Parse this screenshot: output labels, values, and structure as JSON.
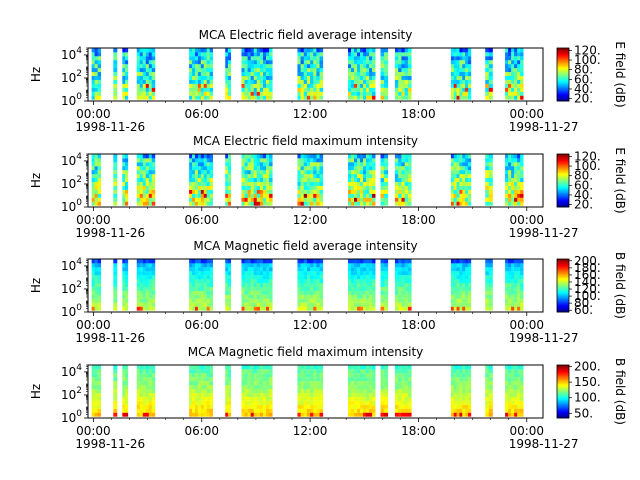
{
  "chart_data": [
    {
      "type": "heatmap",
      "title": "MCA  Electric field average intensity",
      "ylabel": "Hz",
      "y_scale": "log",
      "ylim": [
        1,
        40000
      ],
      "y_ticks": [
        {
          "value": 1,
          "base": "10",
          "exp": "0"
        },
        {
          "value": 100,
          "base": "10",
          "exp": "2"
        },
        {
          "value": 10000,
          "base": "10",
          "exp": "4"
        }
      ],
      "x_ticks": [
        "00:00",
        "06:00",
        "12:00",
        "18:00",
        "00:00"
      ],
      "x_tick_hours": [
        0,
        6,
        12,
        18,
        24
      ],
      "x_dates": [
        "1998-11-26",
        "1998-11-27"
      ],
      "colorbar": {
        "label": "E field (dB)",
        "range": [
          15,
          125
        ],
        "ticks": [
          20,
          40,
          60,
          80,
          100,
          120
        ],
        "tick_labels": [
          "20.",
          "40.",
          "60.",
          "80.",
          "100.",
          "120."
        ]
      },
      "data_intervals_hours": [
        [
          -0.1,
          0.4
        ],
        [
          1.1,
          1.3
        ],
        [
          1.6,
          1.9
        ],
        [
          2.4,
          3.4
        ],
        [
          5.3,
          6.6
        ],
        [
          7.3,
          7.6
        ],
        [
          8.2,
          9.9
        ],
        [
          11.3,
          12.7
        ],
        [
          14.1,
          15.6
        ],
        [
          15.9,
          16.3
        ],
        [
          16.7,
          17.6
        ],
        [
          19.8,
          20.9
        ],
        [
          21.7,
          22.1
        ],
        [
          22.8,
          23.8
        ]
      ],
      "intensity_profile": {
        "low_freq_db": 70,
        "mid_freq_db": 65,
        "high_freq_db": 50,
        "floor_db": 40
      }
    },
    {
      "type": "heatmap",
      "title": "MCA  Electric field maximum intensity",
      "ylabel": "Hz",
      "y_scale": "log",
      "ylim": [
        1,
        40000
      ],
      "y_ticks": [
        {
          "value": 1,
          "base": "10",
          "exp": "0"
        },
        {
          "value": 100,
          "base": "10",
          "exp": "2"
        },
        {
          "value": 10000,
          "base": "10",
          "exp": "4"
        }
      ],
      "x_ticks": [
        "00:00",
        "06:00",
        "12:00",
        "18:00",
        "00:00"
      ],
      "x_tick_hours": [
        0,
        6,
        12,
        18,
        24
      ],
      "x_dates": [
        "1998-11-26",
        "1998-11-27"
      ],
      "colorbar": {
        "label": "E field (dB)",
        "range": [
          15,
          125
        ],
        "ticks": [
          20,
          40,
          60,
          80,
          100,
          120
        ],
        "tick_labels": [
          "20.",
          "40.",
          "60.",
          "80.",
          "100.",
          "120."
        ]
      },
      "data_intervals_hours": [
        [
          -0.1,
          0.4
        ],
        [
          1.1,
          1.3
        ],
        [
          1.6,
          1.9
        ],
        [
          2.4,
          3.4
        ],
        [
          5.3,
          6.6
        ],
        [
          7.3,
          7.6
        ],
        [
          8.2,
          9.9
        ],
        [
          11.3,
          12.7
        ],
        [
          14.1,
          15.6
        ],
        [
          15.9,
          16.3
        ],
        [
          16.7,
          17.6
        ],
        [
          19.8,
          20.9
        ],
        [
          21.7,
          22.1
        ],
        [
          22.8,
          23.8
        ]
      ],
      "intensity_profile": {
        "low_freq_db": 78,
        "mid_freq_db": 70,
        "high_freq_db": 55,
        "floor_db": 45
      }
    },
    {
      "type": "heatmap",
      "title": "MCA  Magnetic field average intensity",
      "ylabel": "Hz",
      "y_scale": "log",
      "ylim": [
        1,
        40000
      ],
      "y_ticks": [
        {
          "value": 1,
          "base": "10",
          "exp": "0"
        },
        {
          "value": 100,
          "base": "10",
          "exp": "2"
        },
        {
          "value": 10000,
          "base": "10",
          "exp": "4"
        }
      ],
      "x_ticks": [
        "00:00",
        "06:00",
        "12:00",
        "18:00",
        "00:00"
      ],
      "x_tick_hours": [
        0,
        6,
        12,
        18,
        24
      ],
      "x_dates": [
        "1998-11-26",
        "1998-11-27"
      ],
      "colorbar": {
        "label": "B field (dB)",
        "range": [
          55,
          205
        ],
        "ticks": [
          60,
          80,
          100,
          120,
          140,
          160,
          180,
          200
        ],
        "tick_labels": [
          "60.",
          "80.",
          "100.",
          "120.",
          "140.",
          "160.",
          "180.",
          "200."
        ]
      },
      "data_intervals_hours": [
        [
          -0.1,
          0.4
        ],
        [
          1.1,
          1.3
        ],
        [
          1.6,
          1.9
        ],
        [
          2.4,
          3.4
        ],
        [
          5.3,
          6.6
        ],
        [
          7.3,
          7.6
        ],
        [
          8.2,
          9.9
        ],
        [
          11.3,
          12.7
        ],
        [
          14.1,
          15.6
        ],
        [
          15.9,
          16.3
        ],
        [
          16.7,
          17.6
        ],
        [
          19.8,
          20.9
        ],
        [
          21.7,
          22.1
        ],
        [
          22.8,
          23.8
        ]
      ],
      "intensity_profile": {
        "low_freq_db": 140,
        "mid_freq_db": 120,
        "high_freq_db": 95,
        "top_freq_db": 65
      }
    },
    {
      "type": "heatmap",
      "title": "MCA  Magnetic field maximum intensity",
      "ylabel": "Hz",
      "y_scale": "log",
      "ylim": [
        1,
        40000
      ],
      "y_ticks": [
        {
          "value": 1,
          "base": "10",
          "exp": "0"
        },
        {
          "value": 100,
          "base": "10",
          "exp": "2"
        },
        {
          "value": 10000,
          "base": "10",
          "exp": "4"
        }
      ],
      "x_ticks": [
        "00:00",
        "06:00",
        "12:00",
        "18:00",
        "00:00"
      ],
      "x_tick_hours": [
        0,
        6,
        12,
        18,
        24
      ],
      "x_dates": [
        "1998-11-26",
        "1998-11-27"
      ],
      "colorbar": {
        "label": "B field (dB)",
        "range": [
          35,
          205
        ],
        "ticks": [
          50,
          100,
          150,
          200
        ],
        "tick_labels": [
          "50.",
          "100.",
          "150.",
          "200."
        ]
      },
      "data_intervals_hours": [
        [
          -0.1,
          0.4
        ],
        [
          1.1,
          1.3
        ],
        [
          1.6,
          1.9
        ],
        [
          2.4,
          3.4
        ],
        [
          5.3,
          6.6
        ],
        [
          7.3,
          7.6
        ],
        [
          8.2,
          9.9
        ],
        [
          11.3,
          12.7
        ],
        [
          14.1,
          15.6
        ],
        [
          15.9,
          16.3
        ],
        [
          16.7,
          17.6
        ],
        [
          19.8,
          20.9
        ],
        [
          21.7,
          22.1
        ],
        [
          22.8,
          23.8
        ]
      ],
      "intensity_profile": {
        "low_freq_db": 150,
        "mid_freq_db": 125,
        "high_freq_db": 110,
        "top_freq_db": 100
      }
    }
  ]
}
